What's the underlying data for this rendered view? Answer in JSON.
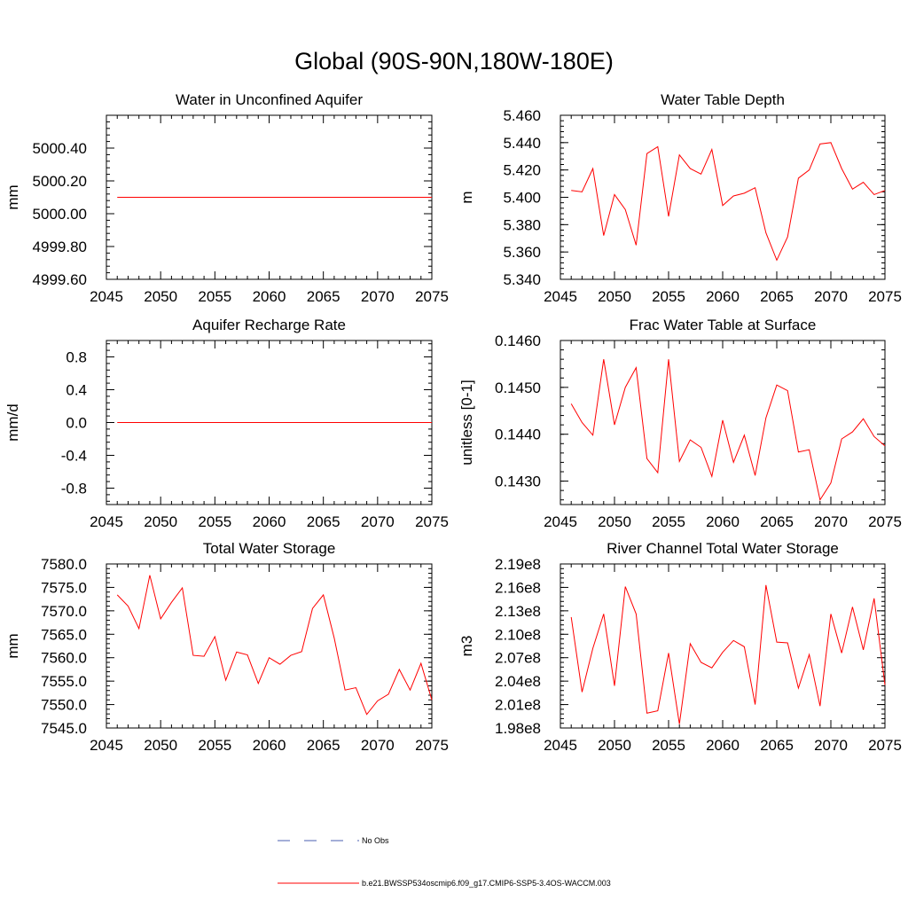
{
  "title": "Global (90S-90N,180W-180E)",
  "series_color": "#ff0000",
  "obs_color": "#4a5fb0",
  "legend": {
    "obs_label": "No Obs",
    "model_label": "b.e21.BWSSP534oscmip6.f09_g17.CMIP6-SSP5-3.4OS-WACCM.003"
  },
  "chart_data": [
    {
      "type": "line",
      "title": "Water in Unconfined Aquifer",
      "ylabel": "mm",
      "xlim": [
        2045,
        2075
      ],
      "xticks": [
        "2045",
        "2050",
        "2055",
        "2060",
        "2065",
        "2070",
        "2075"
      ],
      "ylim": [
        4999.6,
        5000.6
      ],
      "yticks": [
        "4999.60",
        "4999.80",
        "5000.00",
        "5000.20",
        "5000.40"
      ],
      "x": [
        2046,
        2047,
        2048,
        2049,
        2050,
        2051,
        2052,
        2053,
        2054,
        2055,
        2056,
        2057,
        2058,
        2059,
        2060,
        2061,
        2062,
        2063,
        2064,
        2065,
        2066,
        2067,
        2068,
        2069,
        2070,
        2071,
        2072,
        2073,
        2074,
        2075
      ],
      "series": [
        {
          "name": "b.e21.BWSSP534oscmip6.f09_g17.CMIP6-SSP5-3.4OS-WACCM.003",
          "values": [
            5000.1,
            5000.1,
            5000.1,
            5000.1,
            5000.1,
            5000.1,
            5000.1,
            5000.1,
            5000.1,
            5000.1,
            5000.1,
            5000.1,
            5000.1,
            5000.1,
            5000.1,
            5000.1,
            5000.1,
            5000.1,
            5000.1,
            5000.1,
            5000.1,
            5000.1,
            5000.1,
            5000.1,
            5000.1,
            5000.1,
            5000.1,
            5000.1,
            5000.1,
            5000.1
          ]
        }
      ]
    },
    {
      "type": "line",
      "title": "Water Table Depth",
      "ylabel": "m",
      "xlim": [
        2045,
        2075
      ],
      "xticks": [
        "2045",
        "2050",
        "2055",
        "2060",
        "2065",
        "2070",
        "2075"
      ],
      "ylim": [
        5.34,
        5.46
      ],
      "yticks": [
        "5.340",
        "5.360",
        "5.380",
        "5.400",
        "5.420",
        "5.440",
        "5.460"
      ],
      "x": [
        2046,
        2047,
        2048,
        2049,
        2050,
        2051,
        2052,
        2053,
        2054,
        2055,
        2056,
        2057,
        2058,
        2059,
        2060,
        2061,
        2062,
        2063,
        2064,
        2065,
        2066,
        2067,
        2068,
        2069,
        2070,
        2071,
        2072,
        2073,
        2074,
        2075
      ],
      "series": [
        {
          "name": "b.e21.BWSSP534oscmip6.f09_g17.CMIP6-SSP5-3.4OS-WACCM.003",
          "values": [
            5.405,
            5.404,
            5.421,
            5.372,
            5.402,
            5.391,
            5.365,
            5.432,
            5.437,
            5.386,
            5.431,
            5.421,
            5.417,
            5.435,
            5.394,
            5.401,
            5.403,
            5.407,
            5.374,
            5.354,
            5.371,
            5.414,
            5.42,
            5.439,
            5.44,
            5.421,
            5.406,
            5.411,
            5.402,
            5.405
          ]
        }
      ]
    },
    {
      "type": "line",
      "title": "Aquifer Recharge Rate",
      "ylabel": "mm/d",
      "xlim": [
        2045,
        2075
      ],
      "xticks": [
        "2045",
        "2050",
        "2055",
        "2060",
        "2065",
        "2070",
        "2075"
      ],
      "ylim": [
        -1.0,
        1.0
      ],
      "yticks": [
        "-0.8",
        "-0.4",
        "0.0",
        "0.4",
        "0.8"
      ],
      "x": [
        2046,
        2047,
        2048,
        2049,
        2050,
        2051,
        2052,
        2053,
        2054,
        2055,
        2056,
        2057,
        2058,
        2059,
        2060,
        2061,
        2062,
        2063,
        2064,
        2065,
        2066,
        2067,
        2068,
        2069,
        2070,
        2071,
        2072,
        2073,
        2074,
        2075
      ],
      "series": [
        {
          "name": "b.e21.BWSSP534oscmip6.f09_g17.CMIP6-SSP5-3.4OS-WACCM.003",
          "values": [
            0,
            0,
            0,
            0,
            0,
            0,
            0,
            0,
            0,
            0,
            0,
            0,
            0,
            0,
            0,
            0,
            0,
            0,
            0,
            0,
            0,
            0,
            0,
            0,
            0,
            0,
            0,
            0,
            0,
            0
          ]
        }
      ]
    },
    {
      "type": "line",
      "title": "Frac Water Table at Surface",
      "ylabel": "unitless [0-1]",
      "xlim": [
        2045,
        2075
      ],
      "xticks": [
        "2045",
        "2050",
        "2055",
        "2060",
        "2065",
        "2070",
        "2075"
      ],
      "ylim": [
        0.1425,
        0.146
      ],
      "yticks": [
        "0.1430",
        "0.1440",
        "0.1450",
        "0.1460"
      ],
      "x": [
        2046,
        2047,
        2048,
        2049,
        2050,
        2051,
        2052,
        2053,
        2054,
        2055,
        2056,
        2057,
        2058,
        2059,
        2060,
        2061,
        2062,
        2063,
        2064,
        2065,
        2066,
        2067,
        2068,
        2069,
        2070,
        2071,
        2072,
        2073,
        2074,
        2075
      ],
      "series": [
        {
          "name": "b.e21.BWSSP534oscmip6.f09_g17.CMIP6-SSP5-3.4OS-WACCM.003",
          "values": [
            0.14465,
            0.14425,
            0.14398,
            0.1456,
            0.1442,
            0.145,
            0.14542,
            0.14348,
            0.14318,
            0.1456,
            0.14342,
            0.14388,
            0.14372,
            0.1431,
            0.1443,
            0.1434,
            0.14398,
            0.14312,
            0.14435,
            0.14505,
            0.14493,
            0.14362,
            0.14367,
            0.1426,
            0.14296,
            0.1439,
            0.14405,
            0.14433,
            0.14395,
            0.14375
          ]
        }
      ]
    },
    {
      "type": "line",
      "title": "Total Water Storage",
      "ylabel": "mm",
      "xlim": [
        2045,
        2075
      ],
      "xticks": [
        "2045",
        "2050",
        "2055",
        "2060",
        "2065",
        "2070",
        "2075"
      ],
      "ylim": [
        7545.0,
        7580.0
      ],
      "yticks": [
        "7545.0",
        "7550.0",
        "7555.0",
        "7560.0",
        "7565.0",
        "7570.0",
        "7575.0",
        "7580.0"
      ],
      "x": [
        2046,
        2047,
        2048,
        2049,
        2050,
        2051,
        2052,
        2053,
        2054,
        2055,
        2056,
        2057,
        2058,
        2059,
        2060,
        2061,
        2062,
        2063,
        2064,
        2065,
        2066,
        2067,
        2068,
        2069,
        2070,
        2071,
        2072,
        2073,
        2074,
        2075
      ],
      "series": [
        {
          "name": "b.e21.BWSSP534oscmip6.f09_g17.CMIP6-SSP5-3.4OS-WACCM.003",
          "values": [
            7573.4,
            7571.0,
            7566.2,
            7577.6,
            7568.3,
            7571.8,
            7574.9,
            7560.5,
            7560.3,
            7564.5,
            7555.2,
            7561.2,
            7560.6,
            7554.5,
            7560.0,
            7558.6,
            7560.5,
            7561.3,
            7570.5,
            7573.4,
            7564.2,
            7553.1,
            7553.6,
            7547.9,
            7550.8,
            7552.2,
            7557.5,
            7553.1,
            7558.8,
            7551.0
          ]
        }
      ]
    },
    {
      "type": "line",
      "title": "River Channel Total Water Storage",
      "ylabel": "m3",
      "xlim": [
        2045,
        2075
      ],
      "xticks": [
        "2045",
        "2050",
        "2055",
        "2060",
        "2065",
        "2070",
        "2075"
      ],
      "ylim": [
        198000000.0,
        219000000.0
      ],
      "yticks": [
        "1.98e8",
        "2.01e8",
        "2.04e8",
        "2.07e8",
        "2.10e8",
        "2.13e8",
        "2.16e8",
        "2.19e8"
      ],
      "x": [
        2046,
        2047,
        2048,
        2049,
        2050,
        2051,
        2052,
        2053,
        2054,
        2055,
        2056,
        2057,
        2058,
        2059,
        2060,
        2061,
        2062,
        2063,
        2064,
        2065,
        2066,
        2067,
        2068,
        2069,
        2070,
        2071,
        2072,
        2073,
        2074,
        2075
      ],
      "series": [
        {
          "name": "b.e21.BWSSP534oscmip6.f09_g17.CMIP6-SSP5-3.4OS-WACCM.003",
          "values": [
            212200000.0,
            202600000.0,
            208200000.0,
            212600000.0,
            203400000.0,
            216100000.0,
            212600000.0,
            199900000.0,
            200200000.0,
            207600000.0,
            198500000.0,
            208800000.0,
            206400000.0,
            205700000.0,
            207700000.0,
            209200000.0,
            208400000.0,
            201000000.0,
            216300000.0,
            209000000.0,
            208900000.0,
            203100000.0,
            207400000.0,
            200800000.0,
            212600000.0,
            207600000.0,
            213500000.0,
            208000000.0,
            214600000.0,
            203500000.0
          ]
        }
      ]
    }
  ]
}
